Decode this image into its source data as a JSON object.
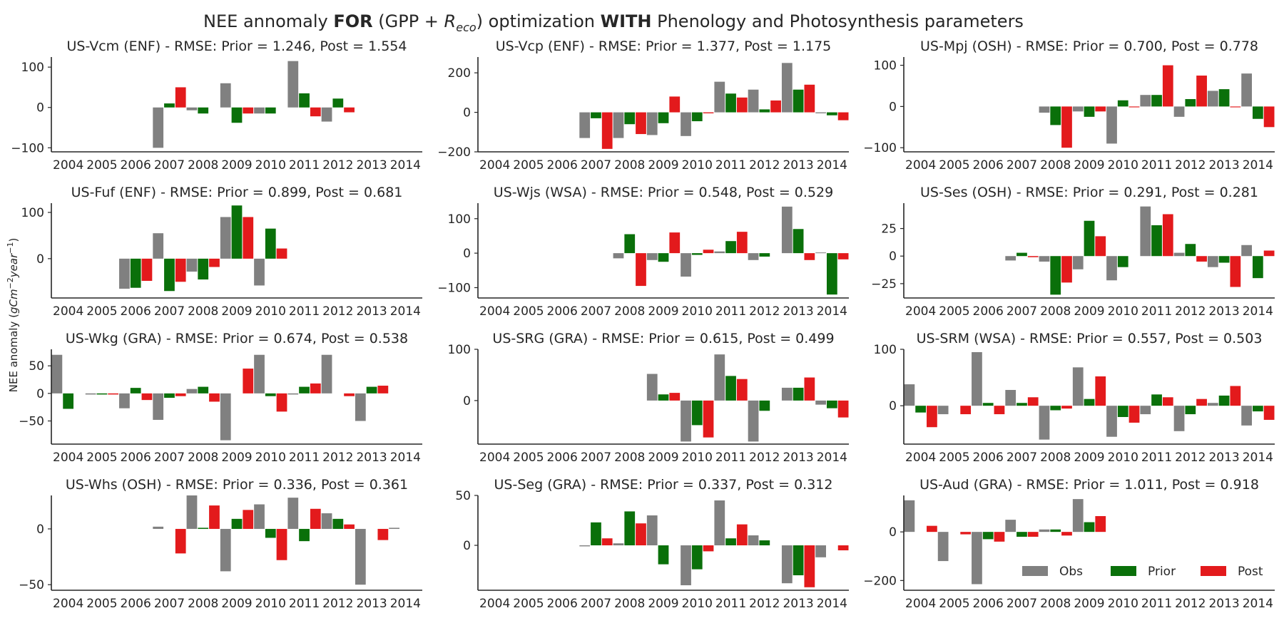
{
  "figure": {
    "title_a": "NEE annomaly ",
    "title_b": "FOR",
    "title_c": " (GPP + ",
    "title_d": "R",
    "title_e": "eco",
    "title_f": ") optimization ",
    "title_g": "WITH",
    "title_h": " Phenology and Photosynthesis parameters",
    "ylabel_a": "NEE anomaly (",
    "ylabel_b": "gCm",
    "ylabel_c": "−2",
    "ylabel_d": "year",
    "ylabel_e": "−1",
    "ylabel_f": ")"
  },
  "colors": {
    "Obs": "#808080",
    "Prior": "#0a700a",
    "Post": "#e31a1c"
  },
  "legend": [
    "Obs",
    "Prior",
    "Post"
  ],
  "chart_data": [
    {
      "type": "bar",
      "title": "US-Vcm (ENF) - RMSE: Prior = 1.246, Post = 1.554",
      "categories": [
        "2004",
        "2005",
        "2006",
        "2007",
        "2008",
        "2009",
        "2010",
        "2011",
        "2012",
        "2013",
        "2014"
      ],
      "ylim": [
        -110,
        125
      ],
      "yticks": [
        -100,
        0,
        100
      ],
      "series": [
        {
          "name": "Obs",
          "values": [
            null,
            null,
            null,
            -100,
            -7,
            60,
            -15,
            115,
            -35,
            null,
            null
          ]
        },
        {
          "name": "Prior",
          "values": [
            null,
            null,
            null,
            10,
            -15,
            -38,
            -15,
            35,
            22,
            null,
            null
          ]
        },
        {
          "name": "Post",
          "values": [
            null,
            null,
            null,
            50,
            null,
            -15,
            null,
            -22,
            -12,
            null,
            null
          ]
        }
      ]
    },
    {
      "type": "bar",
      "title": "US-Vcp (ENF) - RMSE: Prior = 1.377, Post = 1.175",
      "categories": [
        "2004",
        "2005",
        "2006",
        "2007",
        "2008",
        "2009",
        "2010",
        "2011",
        "2012",
        "2013",
        "2014"
      ],
      "ylim": [
        -200,
        280
      ],
      "yticks": [
        -200,
        0,
        200
      ],
      "series": [
        {
          "name": "Obs",
          "values": [
            null,
            null,
            null,
            -130,
            -130,
            -115,
            -120,
            155,
            115,
            250,
            -5
          ]
        },
        {
          "name": "Prior",
          "values": [
            null,
            null,
            null,
            -30,
            -60,
            -55,
            -45,
            95,
            15,
            115,
            -15
          ]
        },
        {
          "name": "Post",
          "values": [
            null,
            null,
            null,
            -185,
            -110,
            80,
            -5,
            75,
            60,
            140,
            -40
          ]
        }
      ]
    },
    {
      "type": "bar",
      "title": "US-Mpj (OSH) - RMSE: Prior = 0.700, Post = 0.778",
      "categories": [
        "2004",
        "2005",
        "2006",
        "2007",
        "2008",
        "2009",
        "2010",
        "2011",
        "2012",
        "2013",
        "2014"
      ],
      "ylim": [
        -110,
        120
      ],
      "yticks": [
        -100,
        0,
        100
      ],
      "series": [
        {
          "name": "Obs",
          "values": [
            null,
            null,
            null,
            null,
            -15,
            -12,
            -90,
            28,
            -25,
            38,
            80
          ]
        },
        {
          "name": "Prior",
          "values": [
            null,
            null,
            null,
            null,
            -45,
            -25,
            15,
            28,
            18,
            42,
            -30
          ]
        },
        {
          "name": "Post",
          "values": [
            null,
            null,
            null,
            null,
            -100,
            -12,
            -2,
            100,
            75,
            -2,
            -50
          ]
        }
      ]
    },
    {
      "type": "bar",
      "title": "US-Fuf (ENF) - RMSE: Prior = 0.899, Post = 0.681",
      "categories": [
        "2004",
        "2005",
        "2006",
        "2007",
        "2008",
        "2009",
        "2010",
        "2011",
        "2012",
        "2013",
        "2014"
      ],
      "ylim": [
        -85,
        120
      ],
      "yticks": [
        0,
        100
      ],
      "series": [
        {
          "name": "Obs",
          "values": [
            null,
            null,
            -65,
            55,
            -28,
            90,
            -58,
            null,
            null,
            null,
            null
          ]
        },
        {
          "name": "Prior",
          "values": [
            null,
            null,
            -63,
            -70,
            -45,
            115,
            65,
            null,
            null,
            null,
            null
          ]
        },
        {
          "name": "Post",
          "values": [
            null,
            null,
            -48,
            -50,
            -18,
            90,
            22,
            null,
            null,
            null,
            null
          ]
        }
      ]
    },
    {
      "type": "bar",
      "title": "US-Wjs (WSA) - RMSE: Prior = 0.548, Post = 0.529",
      "categories": [
        "2004",
        "2005",
        "2006",
        "2007",
        "2008",
        "2009",
        "2010",
        "2011",
        "2012",
        "2013",
        "2014"
      ],
      "ylim": [
        -130,
        145
      ],
      "yticks": [
        -100,
        0,
        100
      ],
      "series": [
        {
          "name": "Obs",
          "values": [
            null,
            null,
            null,
            null,
            -15,
            -20,
            -68,
            5,
            -20,
            135,
            2
          ]
        },
        {
          "name": "Prior",
          "values": [
            null,
            null,
            null,
            null,
            55,
            -25,
            -5,
            35,
            -10,
            70,
            -120
          ]
        },
        {
          "name": "Post",
          "values": [
            null,
            null,
            null,
            null,
            -95,
            60,
            10,
            62,
            null,
            -20,
            -18
          ]
        }
      ]
    },
    {
      "type": "bar",
      "title": "US-Ses (OSH) - RMSE: Prior = 0.291, Post = 0.281",
      "categories": [
        "2004",
        "2005",
        "2006",
        "2007",
        "2008",
        "2009",
        "2010",
        "2011",
        "2012",
        "2013",
        "2014"
      ],
      "ylim": [
        -38,
        48
      ],
      "yticks": [
        -25,
        0,
        25
      ],
      "series": [
        {
          "name": "Obs",
          "values": [
            null,
            null,
            null,
            -4,
            -5,
            -12,
            -22,
            45,
            3,
            -10,
            10
          ]
        },
        {
          "name": "Prior",
          "values": [
            null,
            null,
            null,
            3,
            -35,
            32,
            -10,
            28,
            11,
            -6,
            -20
          ]
        },
        {
          "name": "Post",
          "values": [
            null,
            null,
            null,
            -1,
            -24,
            18,
            null,
            38,
            -5,
            -28,
            5
          ]
        }
      ]
    },
    {
      "type": "bar",
      "title": "US-Wkg (GRA) - RMSE: Prior = 0.674, Post = 0.538",
      "categories": [
        "2004",
        "2005",
        "2006",
        "2007",
        "2008",
        "2009",
        "2010",
        "2011",
        "2012",
        "2013",
        "2014"
      ],
      "ylim": [
        -92,
        80
      ],
      "yticks": [
        -50,
        0,
        50
      ],
      "series": [
        {
          "name": "Obs",
          "values": [
            70,
            -2,
            -27,
            -48,
            8,
            -85,
            70,
            -2,
            70,
            -50,
            null
          ]
        },
        {
          "name": "Prior",
          "values": [
            -28,
            -2,
            10,
            -8,
            12,
            null,
            -5,
            12,
            null,
            12,
            null
          ]
        },
        {
          "name": "Post",
          "values": [
            null,
            -2,
            -12,
            -5,
            -15,
            45,
            -33,
            18,
            -5,
            14,
            null
          ]
        }
      ]
    },
    {
      "type": "bar",
      "title": "US-SRG (GRA) - RMSE: Prior = 0.615, Post = 0.499",
      "categories": [
        "2004",
        "2005",
        "2006",
        "2007",
        "2008",
        "2009",
        "2010",
        "2011",
        "2012",
        "2013",
        "2014"
      ],
      "ylim": [
        -85,
        100
      ],
      "yticks": [
        0,
        100
      ],
      "series": [
        {
          "name": "Obs",
          "values": [
            null,
            null,
            null,
            null,
            null,
            52,
            -80,
            90,
            -80,
            25,
            -8
          ]
        },
        {
          "name": "Prior",
          "values": [
            null,
            null,
            null,
            null,
            null,
            12,
            -48,
            48,
            -20,
            25,
            -15
          ]
        },
        {
          "name": "Post",
          "values": [
            null,
            null,
            null,
            null,
            null,
            15,
            -72,
            42,
            null,
            45,
            -33
          ]
        }
      ]
    },
    {
      "type": "bar",
      "title": "US-SRM (WSA) - RMSE: Prior = 0.557, Post = 0.503",
      "categories": [
        "2004",
        "2005",
        "2006",
        "2007",
        "2008",
        "2009",
        "2010",
        "2011",
        "2012",
        "2013",
        "2014"
      ],
      "ylim": [
        -68,
        100
      ],
      "yticks": [
        0,
        100
      ],
      "series": [
        {
          "name": "Obs",
          "values": [
            38,
            -15,
            95,
            28,
            -60,
            68,
            -55,
            -15,
            -45,
            5,
            -35
          ]
        },
        {
          "name": "Prior",
          "values": [
            -12,
            null,
            5,
            5,
            -8,
            12,
            -20,
            20,
            -15,
            18,
            -10
          ]
        },
        {
          "name": "Post",
          "values": [
            -38,
            -15,
            -15,
            15,
            -5,
            52,
            -30,
            15,
            12,
            35,
            -25
          ]
        }
      ]
    },
    {
      "type": "bar",
      "title": "US-Whs (OSH) - RMSE: Prior = 0.336, Post = 0.361",
      "categories": [
        "2004",
        "2005",
        "2006",
        "2007",
        "2008",
        "2009",
        "2010",
        "2011",
        "2012",
        "2013",
        "2014"
      ],
      "ylim": [
        -55,
        30
      ],
      "yticks": [
        -50,
        0
      ],
      "series": [
        {
          "name": "Obs",
          "values": [
            null,
            null,
            null,
            2,
            30,
            -38,
            22,
            28,
            14,
            -50,
            1
          ]
        },
        {
          "name": "Prior",
          "values": [
            null,
            null,
            null,
            null,
            1,
            9,
            -8,
            -11,
            9,
            null,
            null
          ]
        },
        {
          "name": "Post",
          "values": [
            null,
            null,
            null,
            -22,
            21,
            17,
            -28,
            18,
            4,
            -10,
            null
          ]
        }
      ]
    },
    {
      "type": "bar",
      "title": "US-Seg (GRA) - RMSE: Prior = 0.337, Post = 0.312",
      "categories": [
        "2004",
        "2005",
        "2006",
        "2007",
        "2008",
        "2009",
        "2010",
        "2011",
        "2012",
        "2013",
        "2014"
      ],
      "ylim": [
        -45,
        50
      ],
      "yticks": [
        0,
        50
      ],
      "series": [
        {
          "name": "Obs",
          "values": [
            null,
            null,
            null,
            -1,
            2,
            30,
            -40,
            45,
            10,
            -38,
            -12
          ]
        },
        {
          "name": "Prior",
          "values": [
            null,
            null,
            null,
            23,
            34,
            -19,
            -24,
            7,
            5,
            -30,
            null
          ]
        },
        {
          "name": "Post",
          "values": [
            null,
            null,
            null,
            7,
            22,
            null,
            -6,
            21,
            null,
            -42,
            -5
          ]
        }
      ]
    },
    {
      "type": "bar",
      "title": "US-Aud (GRA) - RMSE: Prior = 1.011, Post = 0.918",
      "categories": [
        "2004",
        "2005",
        "2006",
        "2007",
        "2008",
        "2009",
        "2010",
        "2011",
        "2012",
        "2013",
        "2014"
      ],
      "ylim": [
        -240,
        150
      ],
      "yticks": [
        -200,
        0
      ],
      "series": [
        {
          "name": "Obs",
          "values": [
            130,
            -120,
            -215,
            50,
            10,
            135,
            null,
            null,
            null,
            null,
            null
          ]
        },
        {
          "name": "Prior",
          "values": [
            null,
            null,
            -30,
            -20,
            10,
            40,
            null,
            null,
            null,
            null,
            null
          ]
        },
        {
          "name": "Post",
          "values": [
            25,
            -10,
            -40,
            -20,
            -15,
            65,
            null,
            null,
            null,
            null,
            null
          ]
        }
      ]
    }
  ]
}
